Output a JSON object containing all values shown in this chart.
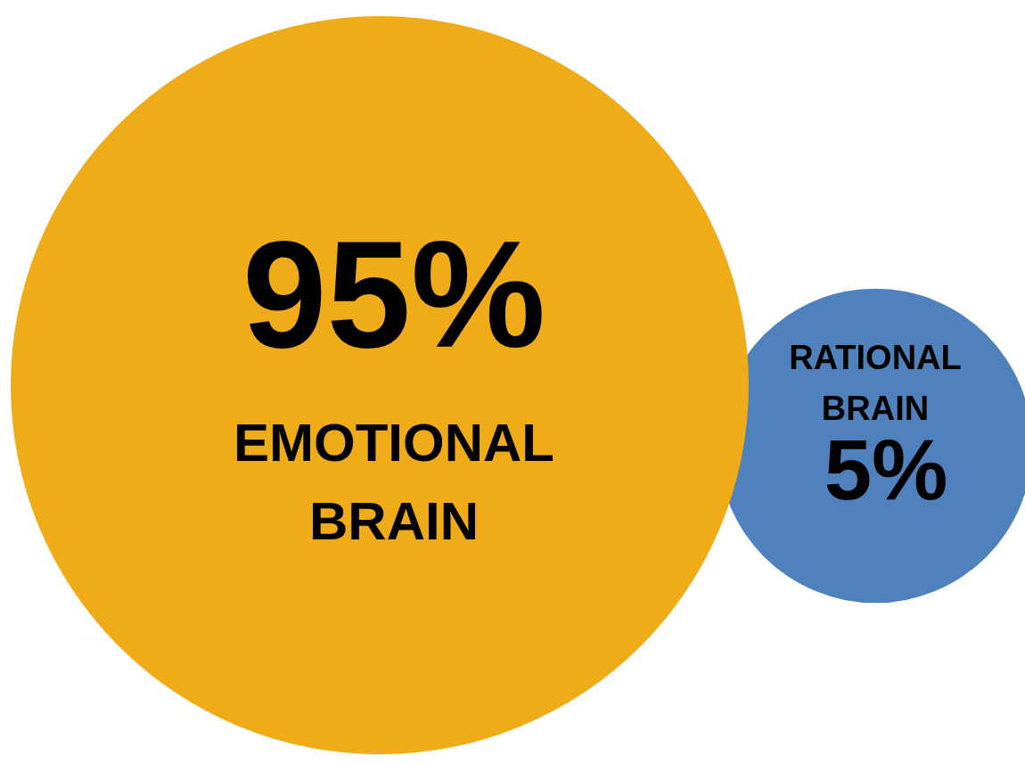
{
  "chart_data": {
    "type": "other",
    "categories": [
      "EMOTIONAL BRAIN",
      "RATIONAL BRAIN"
    ],
    "values": [
      95,
      5
    ],
    "value_labels": [
      "95%",
      "5%"
    ],
    "colors": [
      "#f0ab18",
      "#4f81bd"
    ]
  }
}
